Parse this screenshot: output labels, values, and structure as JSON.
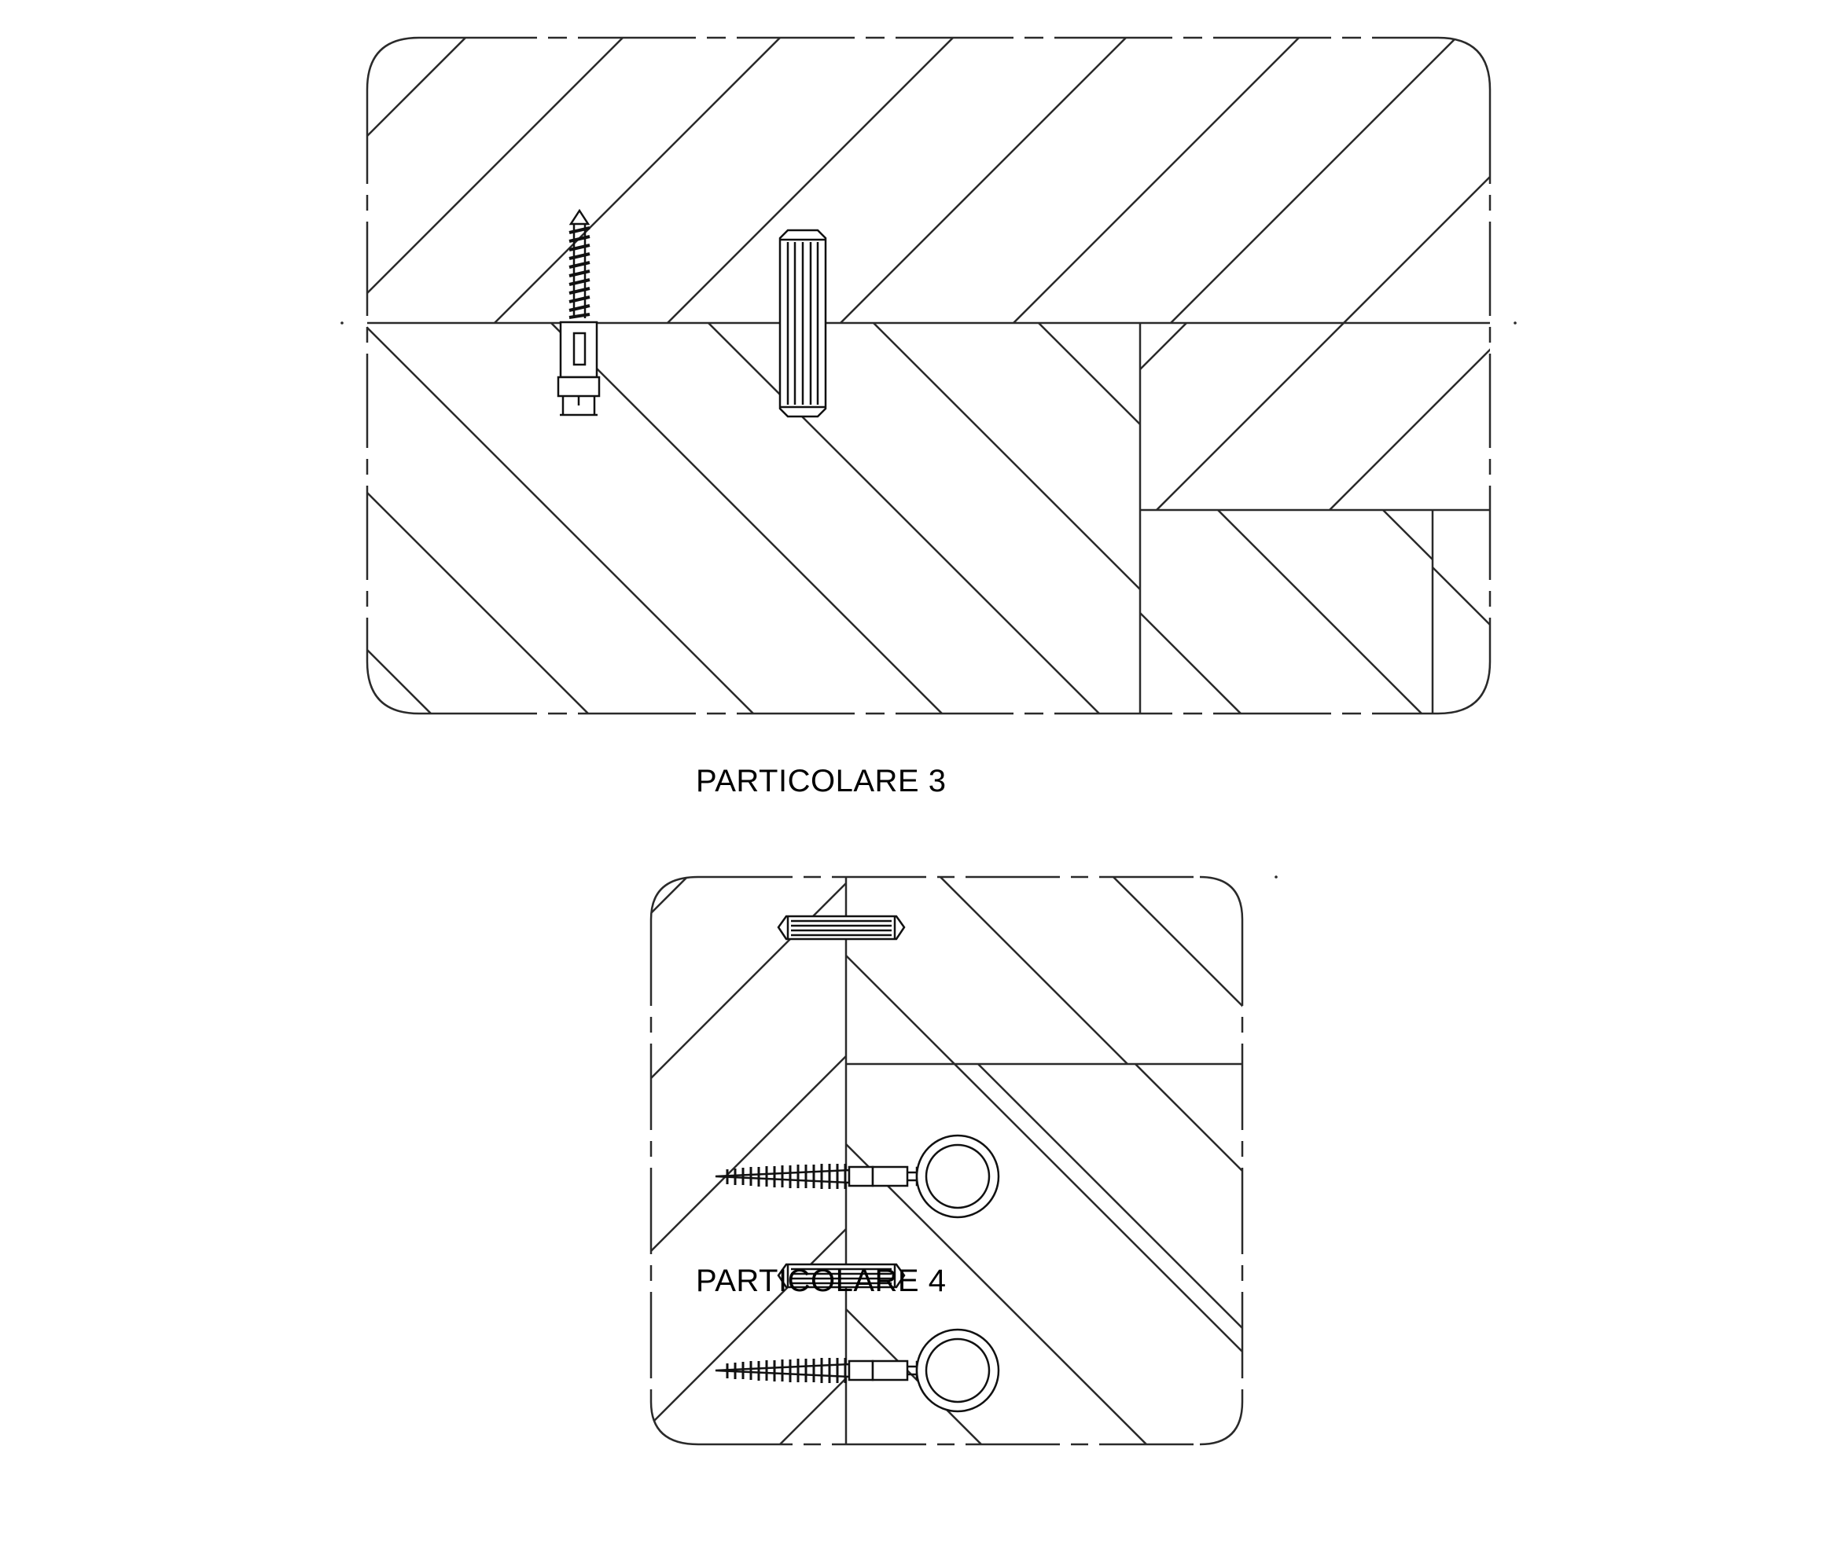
{
  "details": [
    {
      "id": "particolare-3",
      "caption": "PARTICOLARE 3"
    },
    {
      "id": "particolare-4",
      "caption": "PARTICOLARE 4"
    }
  ],
  "colors": {
    "line": "#2a2a2a",
    "background": "#ffffff"
  }
}
